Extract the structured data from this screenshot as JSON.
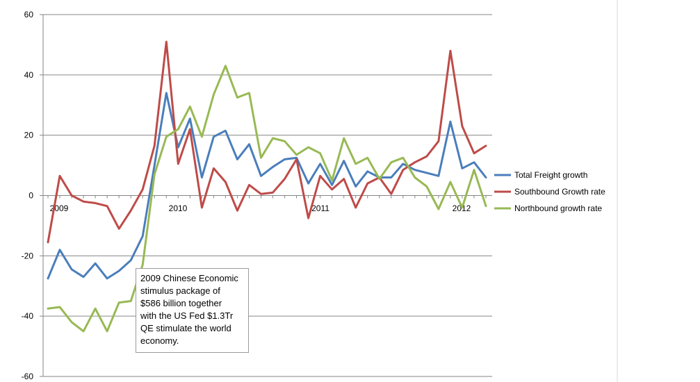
{
  "chart_data": {
    "type": "line",
    "title": "",
    "xlabel": "",
    "ylabel": "",
    "ylim": [
      -60,
      60
    ],
    "y_ticks": [
      "60",
      "40",
      "20",
      "0",
      "-20",
      "-40",
      "-60"
    ],
    "x_labels": [
      "2009",
      "2010",
      "2011",
      "2012"
    ],
    "grid": true,
    "legend_position": "right",
    "colors": {
      "total": "#4a7ebb",
      "south": "#be4b48",
      "north": "#98b954",
      "grid": "#868686",
      "axis": "#868686"
    },
    "series": [
      {
        "name": "Total Freight growth",
        "color": "#4a7ebb",
        "values": [
          -27.5,
          -18,
          -24.5,
          -27,
          -22.5,
          -27.5,
          -25,
          -21.5,
          -13.5,
          10,
          34,
          16,
          25.5,
          6,
          19.5,
          21.5,
          12,
          17,
          6.5,
          9.5,
          12,
          12.5,
          4,
          10.5,
          3.5,
          11.5,
          3,
          8,
          6,
          6,
          10.5,
          8.5,
          7.5,
          6.5,
          24.5,
          9,
          11,
          6
        ]
      },
      {
        "name": "Southbound Growth rate",
        "color": "#be4b48",
        "values": [
          -15.5,
          6.5,
          0,
          -2,
          -2.5,
          -3.5,
          -11,
          -5,
          2,
          16.5,
          51,
          10.5,
          22,
          -4,
          9,
          4.5,
          -5,
          3.5,
          0.5,
          1,
          5.5,
          12,
          -7.5,
          6.5,
          2,
          5.5,
          -4,
          4,
          6,
          0.5,
          8.5,
          11,
          13,
          18,
          48,
          23,
          14,
          16.5
        ]
      },
      {
        "name": "Northbound growth rate",
        "color": "#98b954",
        "values": [
          -37.5,
          -37,
          -42,
          -45,
          -37.5,
          -45,
          -35.5,
          -35,
          -23,
          7,
          19.5,
          22,
          29.5,
          19.5,
          33.5,
          43,
          32.5,
          34,
          12.5,
          19,
          18,
          13.5,
          16,
          14,
          5,
          19,
          10.5,
          12.5,
          5.5,
          11,
          12.5,
          6,
          3,
          -4.5,
          4.5,
          -4,
          8.5,
          -3.5
        ]
      }
    ],
    "annotation": [
      "2009 Chinese Economic",
      "stimulus package of",
      "$586 billion together",
      "with the US Fed $1.3Tr",
      "QE stimulate the world",
      "economy."
    ]
  }
}
